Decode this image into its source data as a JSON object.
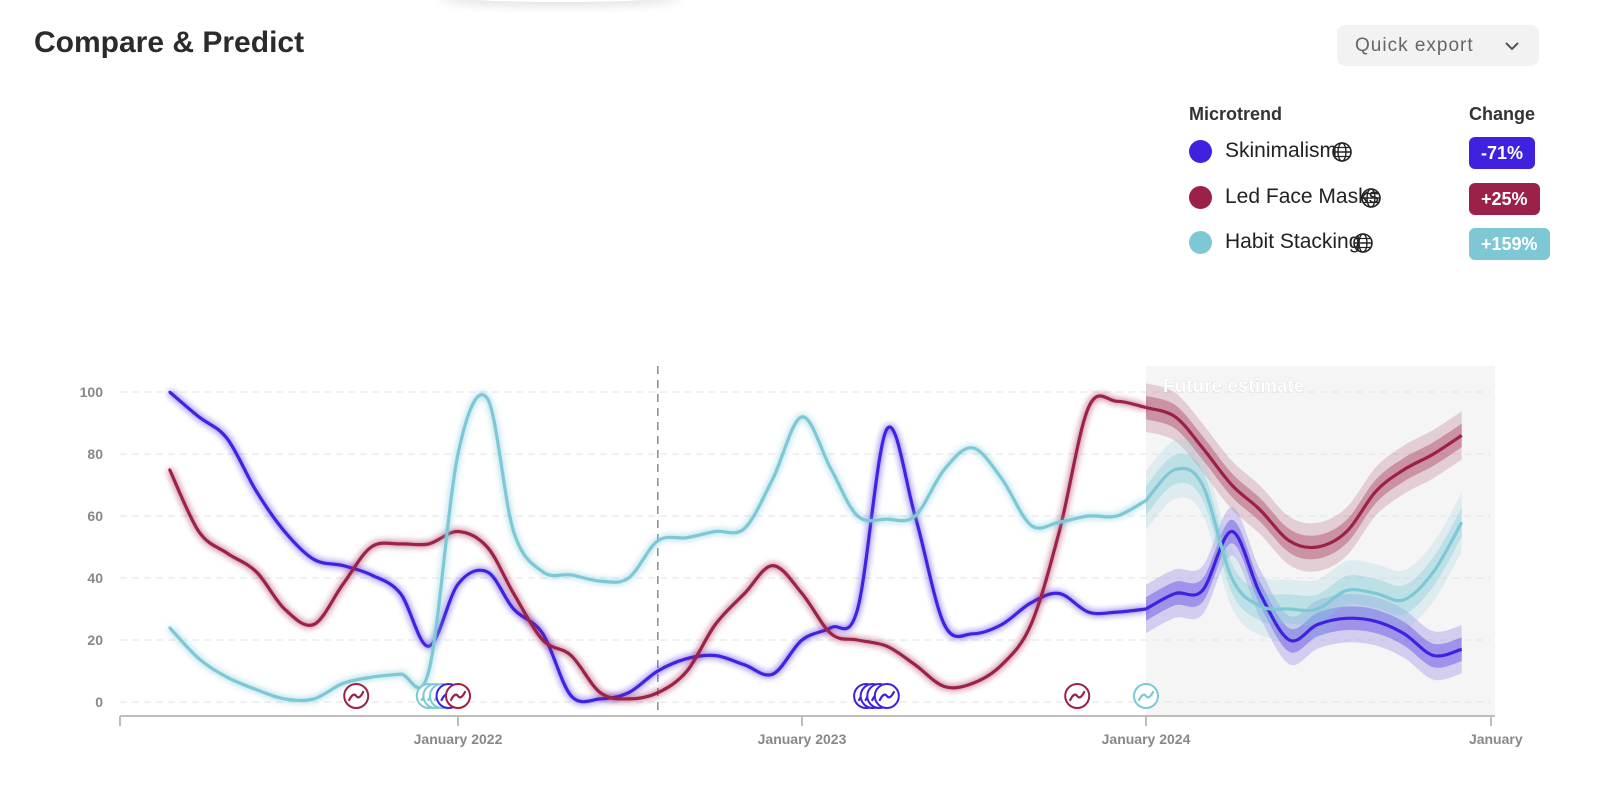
{
  "page": {
    "title": "Compare & Predict"
  },
  "export": {
    "label": "Quick export",
    "icon": "chevron-down-icon"
  },
  "legend": {
    "trend_header": "Microtrend",
    "change_header": "Change",
    "items": [
      {
        "name": "Skinimalism",
        "color": "#3f22e0",
        "change": "-71%",
        "icon": "globe-icon"
      },
      {
        "name": "Led Face Masks",
        "color": "#9b2148",
        "change": "+25%",
        "icon": "globe-icon"
      },
      {
        "name": "Habit Stacking",
        "color": "#7ec8d6",
        "change": "+159%",
        "icon": "globe-icon"
      }
    ]
  },
  "chart_data": {
    "type": "line",
    "ylim": [
      0,
      100
    ],
    "yticks": [
      0,
      20,
      40,
      60,
      80,
      100
    ],
    "xlim": [
      "2021-01-01",
      "2025-01-01"
    ],
    "xticks": [
      {
        "date": "2022-01-01",
        "label": "January 2022"
      },
      {
        "date": "2023-01-01",
        "label": "January 2023"
      },
      {
        "date": "2024-01-01",
        "label": "January 2024"
      },
      {
        "date": "2025-01-01",
        "label": "January"
      }
    ],
    "grid": true,
    "divider_date": "2022-08-01",
    "future_start": "2024-01-01",
    "future_label": "Future estimate",
    "series": [
      {
        "name": "Skinimalism",
        "color": "#3f22e0",
        "points": [
          [
            "2021-03-01",
            100
          ],
          [
            "2021-04-01",
            92
          ],
          [
            "2021-05-01",
            85
          ],
          [
            "2021-06-01",
            68
          ],
          [
            "2021-07-01",
            55
          ],
          [
            "2021-08-01",
            46
          ],
          [
            "2021-09-01",
            44
          ],
          [
            "2021-10-01",
            41
          ],
          [
            "2021-11-01",
            35
          ],
          [
            "2021-12-01",
            18
          ],
          [
            "2022-01-01",
            38
          ],
          [
            "2022-02-01",
            42
          ],
          [
            "2022-03-01",
            30
          ],
          [
            "2022-04-01",
            22
          ],
          [
            "2022-05-01",
            2
          ],
          [
            "2022-06-01",
            1
          ],
          [
            "2022-07-01",
            3
          ],
          [
            "2022-08-01",
            10
          ],
          [
            "2022-09-01",
            14
          ],
          [
            "2022-10-01",
            15
          ],
          [
            "2022-11-01",
            12
          ],
          [
            "2022-12-01",
            9
          ],
          [
            "2023-01-01",
            20
          ],
          [
            "2023-02-01",
            24
          ],
          [
            "2023-03-01",
            30
          ],
          [
            "2023-04-01",
            88
          ],
          [
            "2023-05-01",
            60
          ],
          [
            "2023-06-01",
            25
          ],
          [
            "2023-07-01",
            22
          ],
          [
            "2023-08-01",
            25
          ],
          [
            "2023-09-01",
            32
          ],
          [
            "2023-10-01",
            35
          ],
          [
            "2023-11-01",
            29
          ],
          [
            "2023-12-01",
            29
          ],
          [
            "2024-01-01",
            30
          ]
        ],
        "forecast": [
          [
            "2024-01-01",
            30
          ],
          [
            "2024-02-01",
            35
          ],
          [
            "2024-03-01",
            36
          ],
          [
            "2024-04-01",
            55
          ],
          [
            "2024-05-01",
            35
          ],
          [
            "2024-06-01",
            20
          ],
          [
            "2024-07-01",
            25
          ],
          [
            "2024-08-01",
            27
          ],
          [
            "2024-09-01",
            26
          ],
          [
            "2024-10-01",
            22
          ],
          [
            "2024-11-01",
            15
          ],
          [
            "2024-12-01",
            17
          ]
        ],
        "band": 7
      },
      {
        "name": "Led Face Masks",
        "color": "#9b2148",
        "points": [
          [
            "2021-03-01",
            75
          ],
          [
            "2021-04-01",
            55
          ],
          [
            "2021-05-01",
            48
          ],
          [
            "2021-06-01",
            42
          ],
          [
            "2021-07-01",
            30
          ],
          [
            "2021-08-01",
            25
          ],
          [
            "2021-09-01",
            38
          ],
          [
            "2021-10-01",
            50
          ],
          [
            "2021-11-01",
            51
          ],
          [
            "2021-12-01",
            51
          ],
          [
            "2022-01-01",
            55
          ],
          [
            "2022-02-01",
            50
          ],
          [
            "2022-03-01",
            35
          ],
          [
            "2022-04-01",
            20
          ],
          [
            "2022-05-01",
            15
          ],
          [
            "2022-06-01",
            3
          ],
          [
            "2022-07-01",
            1
          ],
          [
            "2022-08-01",
            3
          ],
          [
            "2022-09-01",
            10
          ],
          [
            "2022-10-01",
            25
          ],
          [
            "2022-11-01",
            35
          ],
          [
            "2022-12-01",
            44
          ],
          [
            "2023-01-01",
            35
          ],
          [
            "2023-02-01",
            22
          ],
          [
            "2023-03-01",
            20
          ],
          [
            "2023-04-01",
            18
          ],
          [
            "2023-05-01",
            12
          ],
          [
            "2023-06-01",
            5
          ],
          [
            "2023-07-01",
            6
          ],
          [
            "2023-08-01",
            12
          ],
          [
            "2023-09-01",
            25
          ],
          [
            "2023-10-01",
            55
          ],
          [
            "2023-11-01",
            95
          ],
          [
            "2023-12-01",
            97
          ],
          [
            "2024-01-01",
            95
          ]
        ],
        "forecast": [
          [
            "2024-01-01",
            95
          ],
          [
            "2024-02-01",
            92
          ],
          [
            "2024-03-01",
            82
          ],
          [
            "2024-04-01",
            70
          ],
          [
            "2024-05-01",
            62
          ],
          [
            "2024-06-01",
            52
          ],
          [
            "2024-07-01",
            50
          ],
          [
            "2024-08-01",
            55
          ],
          [
            "2024-09-01",
            68
          ],
          [
            "2024-10-01",
            75
          ],
          [
            "2024-11-01",
            80
          ],
          [
            "2024-12-01",
            86
          ]
        ],
        "band": 7
      },
      {
        "name": "Habit Stacking",
        "color": "#7ec8d6",
        "points": [
          [
            "2021-03-01",
            24
          ],
          [
            "2021-04-01",
            14
          ],
          [
            "2021-05-01",
            8
          ],
          [
            "2021-06-01",
            4
          ],
          [
            "2021-07-01",
            1
          ],
          [
            "2021-08-01",
            1
          ],
          [
            "2021-09-01",
            6
          ],
          [
            "2021-10-01",
            8
          ],
          [
            "2021-11-01",
            9
          ],
          [
            "2021-12-01",
            10
          ],
          [
            "2022-01-01",
            80
          ],
          [
            "2022-02-01",
            98
          ],
          [
            "2022-03-01",
            55
          ],
          [
            "2022-04-01",
            42
          ],
          [
            "2022-05-01",
            41
          ],
          [
            "2022-06-01",
            39
          ],
          [
            "2022-07-01",
            40
          ],
          [
            "2022-08-01",
            52
          ],
          [
            "2022-09-01",
            53
          ],
          [
            "2022-10-01",
            55
          ],
          [
            "2022-11-01",
            56
          ],
          [
            "2022-12-01",
            72
          ],
          [
            "2023-01-01",
            92
          ],
          [
            "2023-02-01",
            75
          ],
          [
            "2023-03-01",
            60
          ],
          [
            "2023-04-01",
            59
          ],
          [
            "2023-05-01",
            60
          ],
          [
            "2023-06-01",
            75
          ],
          [
            "2023-07-01",
            82
          ],
          [
            "2023-08-01",
            72
          ],
          [
            "2023-09-01",
            57
          ],
          [
            "2023-10-01",
            58
          ],
          [
            "2023-11-01",
            60
          ],
          [
            "2023-12-01",
            60
          ],
          [
            "2024-01-01",
            65
          ]
        ],
        "forecast": [
          [
            "2024-01-01",
            65
          ],
          [
            "2024-02-01",
            75
          ],
          [
            "2024-03-01",
            70
          ],
          [
            "2024-04-01",
            40
          ],
          [
            "2024-05-01",
            31
          ],
          [
            "2024-06-01",
            30
          ],
          [
            "2024-07-01",
            30
          ],
          [
            "2024-08-01",
            36
          ],
          [
            "2024-09-01",
            35
          ],
          [
            "2024-10-01",
            33
          ],
          [
            "2024-11-01",
            42
          ],
          [
            "2024-12-01",
            58
          ]
        ],
        "band": 9
      }
    ],
    "event_markers": [
      {
        "date": "2021-09-15",
        "color": "#9b2148"
      },
      {
        "date": "2021-12-01",
        "color": "#7ec8d6"
      },
      {
        "date": "2021-12-08",
        "color": "#7ec8d6"
      },
      {
        "date": "2021-12-15",
        "color": "#7ec8d6"
      },
      {
        "date": "2021-12-22",
        "color": "#3f22e0"
      },
      {
        "date": "2022-01-01",
        "color": "#9b2148"
      },
      {
        "date": "2023-03-10",
        "color": "#3f22e0"
      },
      {
        "date": "2023-03-17",
        "color": "#3f22e0"
      },
      {
        "date": "2023-03-24",
        "color": "#3f22e0"
      },
      {
        "date": "2023-04-01",
        "color": "#3f22e0"
      },
      {
        "date": "2023-10-20",
        "color": "#9b2148"
      },
      {
        "date": "2024-01-01",
        "color": "#7ec8d6"
      }
    ]
  }
}
